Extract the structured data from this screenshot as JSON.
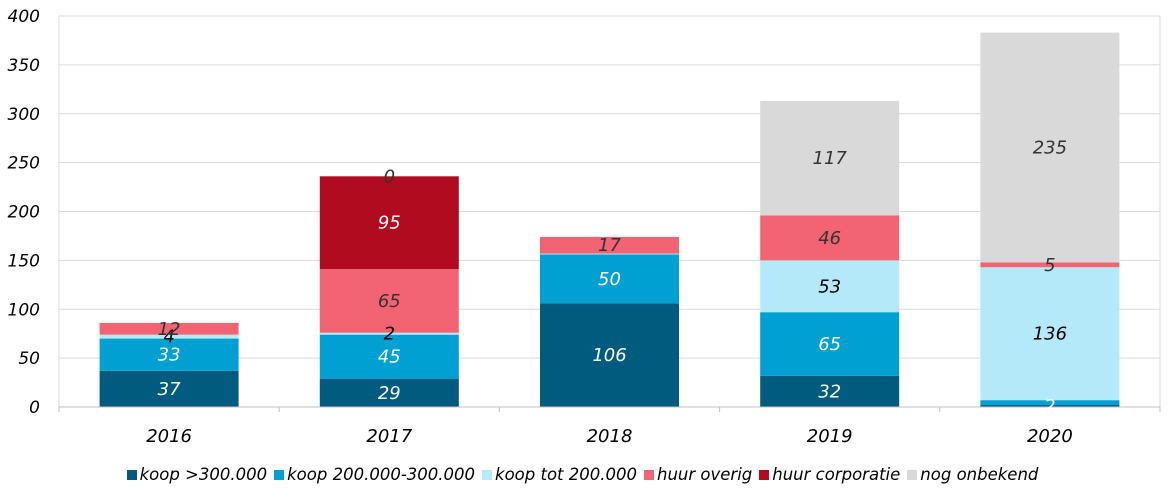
{
  "chart_data": {
    "type": "bar",
    "stacked": true,
    "categories": [
      "2016",
      "2017",
      "2018",
      "2019",
      "2020"
    ],
    "ylim": [
      0,
      400
    ],
    "yticks": [
      0,
      50,
      100,
      150,
      200,
      250,
      300,
      350,
      400
    ],
    "grid": true,
    "legend_position": "bottom",
    "series": [
      {
        "name": "koop >300.000",
        "color": "#005b7f",
        "label_color": "#ffffff",
        "values": [
          37,
          29,
          106,
          32,
          2
        ],
        "labels": [
          "37",
          "29",
          "106",
          "32",
          "2"
        ]
      },
      {
        "name": "koop 200.000-300.000",
        "color": "#00a0d2",
        "label_color": "#ffffff",
        "values": [
          33,
          45,
          50,
          65,
          5
        ],
        "labels": [
          "33",
          "45",
          "50",
          "65",
          ""
        ]
      },
      {
        "name": "koop tot 200.000",
        "color": "#b3e9f8",
        "label_color": "#000000",
        "values": [
          4,
          2,
          1,
          53,
          136
        ],
        "labels": [
          "4",
          "2",
          "",
          "53",
          "136"
        ]
      },
      {
        "name": "huur overig",
        "color": "#f26474",
        "label_color": "#333333",
        "values": [
          12,
          65,
          17,
          46,
          5
        ],
        "labels": [
          "12",
          "65",
          "17",
          "46",
          "5"
        ]
      },
      {
        "name": "huur corporatie",
        "color": "#b00b1e",
        "label_color": "#ffffff",
        "values": [
          0,
          95,
          0,
          0,
          0
        ],
        "labels": [
          "",
          "95",
          "",
          "",
          ""
        ]
      },
      {
        "name": "nog onbekend",
        "color": "#d9d9d9",
        "label_color": "#333333",
        "values": [
          0,
          0,
          0,
          117,
          235
        ],
        "labels": [
          "",
          "0",
          "",
          "117",
          "235"
        ]
      }
    ]
  }
}
